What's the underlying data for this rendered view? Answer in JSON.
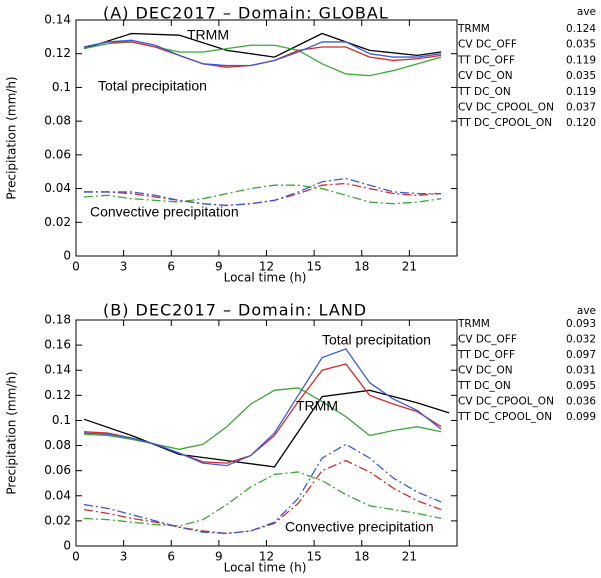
{
  "chart_data": [
    {
      "type": "line",
      "title": "(A)  DEC2017 – Domain: GLOBAL",
      "xlabel": "Local time (h)",
      "ylabel": "Precipitation (mm/h)",
      "legend_header": "ave",
      "annotations": [
        "TRMM",
        "Total precipitation",
        "Convective precipitation"
      ],
      "xlim": [
        0,
        24
      ],
      "xticks": [
        0,
        3,
        6,
        9,
        12,
        15,
        18,
        21
      ],
      "ylim": [
        0,
        0.14
      ],
      "yticks": [
        0,
        0.02,
        0.04,
        0.06,
        0.08,
        0.1,
        0.12,
        0.14
      ],
      "x": [
        0.5,
        2,
        3.5,
        5,
        6.5,
        8,
        9.5,
        11,
        12.5,
        14,
        15.5,
        17,
        18.5,
        20,
        21.5,
        23
      ],
      "series": [
        {
          "name": "TRMM",
          "color": "#000000",
          "linestyle": "solid",
          "average": 0.124,
          "x": [
            0.5,
            3.5,
            6.5,
            9.5,
            12.5,
            15.5,
            18.5,
            21.5,
            23
          ],
          "values": [
            0.123,
            0.132,
            0.131,
            0.122,
            0.118,
            0.132,
            0.122,
            0.119,
            0.121
          ]
        },
        {
          "name": "CV DC_OFF",
          "color": "#3aaa35",
          "linestyle": "dashdot",
          "average": 0.035,
          "values": [
            0.035,
            0.036,
            0.034,
            0.033,
            0.032,
            0.034,
            0.037,
            0.04,
            0.042,
            0.042,
            0.04,
            0.036,
            0.032,
            0.031,
            0.032,
            0.034
          ]
        },
        {
          "name": "TT DC_OFF",
          "color": "#3aaa35",
          "linestyle": "solid",
          "average": 0.119,
          "values": [
            0.123,
            0.126,
            0.127,
            0.124,
            0.121,
            0.121,
            0.123,
            0.125,
            0.125,
            0.122,
            0.114,
            0.108,
            0.107,
            0.11,
            0.114,
            0.118
          ]
        },
        {
          "name": "CV DC_ON",
          "color": "#d42a2a",
          "linestyle": "dashdot",
          "average": 0.035,
          "values": [
            0.038,
            0.038,
            0.037,
            0.035,
            0.033,
            0.031,
            0.03,
            0.031,
            0.033,
            0.037,
            0.042,
            0.043,
            0.04,
            0.037,
            0.036,
            0.037
          ]
        },
        {
          "name": "TT DC_ON",
          "color": "#d42a2a",
          "linestyle": "solid",
          "average": 0.119,
          "values": [
            0.124,
            0.127,
            0.127,
            0.124,
            0.119,
            0.114,
            0.112,
            0.113,
            0.116,
            0.122,
            0.124,
            0.124,
            0.118,
            0.116,
            0.117,
            0.119
          ]
        },
        {
          "name": "CV DC_CPOOL_ON",
          "color": "#3b5bdb",
          "linestyle": "dashdot",
          "average": 0.037,
          "values": [
            0.038,
            0.038,
            0.038,
            0.036,
            0.033,
            0.031,
            0.03,
            0.031,
            0.033,
            0.038,
            0.044,
            0.046,
            0.042,
            0.038,
            0.037,
            0.037
          ]
        },
        {
          "name": "TT DC_CPOOL_ON",
          "color": "#3b5bdb",
          "linestyle": "solid",
          "average": {
            "value": 0.12,
            "label": "0.120"
          },
          "values": [
            0.124,
            0.127,
            0.128,
            0.125,
            0.119,
            0.114,
            0.113,
            0.113,
            0.116,
            0.121,
            0.127,
            0.127,
            0.12,
            0.118,
            0.118,
            0.12
          ]
        }
      ]
    },
    {
      "type": "line",
      "title": "(B)  DEC2017 – Domain: LAND",
      "xlabel": "Local time (h)",
      "ylabel": "Precipitation (mm/h)",
      "legend_header": "ave",
      "annotations": [
        "Total precipitation",
        "TRMM",
        "Convective precipitation"
      ],
      "xlim": [
        0,
        24
      ],
      "xticks": [
        0,
        3,
        6,
        9,
        12,
        15,
        18,
        21
      ],
      "ylim": [
        0,
        0.18
      ],
      "yticks": [
        0,
        0.02,
        0.04,
        0.06,
        0.08,
        0.1,
        0.12,
        0.14,
        0.16,
        0.18
      ],
      "x": [
        0.5,
        2,
        3.5,
        5,
        6.5,
        8,
        9.5,
        11,
        12.5,
        14,
        15.5,
        17,
        18.5,
        20,
        21.5,
        23
      ],
      "series": [
        {
          "name": "TRMM",
          "color": "#000000",
          "linestyle": "solid",
          "average": 0.093,
          "x": [
            0.5,
            3.5,
            6.5,
            9.5,
            12.5,
            15.5,
            18.5,
            21.5,
            23.5
          ],
          "values": [
            0.101,
            0.088,
            0.073,
            0.068,
            0.063,
            0.119,
            0.124,
            0.114,
            0.106
          ]
        },
        {
          "name": "CV DC_OFF",
          "color": "#3aaa35",
          "linestyle": "dashdot",
          "average": 0.032,
          "values": [
            0.022,
            0.021,
            0.019,
            0.017,
            0.016,
            0.021,
            0.033,
            0.047,
            0.057,
            0.059,
            0.052,
            0.041,
            0.032,
            0.029,
            0.026,
            0.022
          ]
        },
        {
          "name": "TT DC_OFF",
          "color": "#3aaa35",
          "linestyle": "solid",
          "average": 0.097,
          "values": [
            0.089,
            0.088,
            0.085,
            0.081,
            0.077,
            0.081,
            0.095,
            0.113,
            0.124,
            0.126,
            0.115,
            0.103,
            0.088,
            0.092,
            0.095,
            0.091
          ]
        },
        {
          "name": "CV DC_ON",
          "color": "#d42a2a",
          "linestyle": "dashdot",
          "average": 0.031,
          "values": [
            0.029,
            0.026,
            0.022,
            0.019,
            0.015,
            0.012,
            0.01,
            0.012,
            0.018,
            0.034,
            0.06,
            0.068,
            0.059,
            0.046,
            0.036,
            0.029
          ]
        },
        {
          "name": "TT DC_ON",
          "color": "#d42a2a",
          "linestyle": "solid",
          "average": 0.095,
          "values": [
            0.091,
            0.09,
            0.086,
            0.081,
            0.074,
            0.067,
            0.066,
            0.072,
            0.088,
            0.115,
            0.14,
            0.145,
            0.12,
            0.113,
            0.107,
            0.095
          ]
        },
        {
          "name": "CV DC_CPOOL_ON",
          "color": "#3b5bdb",
          "linestyle": "dashdot",
          "average": 0.036,
          "values": [
            0.033,
            0.03,
            0.025,
            0.02,
            0.015,
            0.011,
            0.01,
            0.012,
            0.019,
            0.038,
            0.07,
            0.081,
            0.07,
            0.054,
            0.043,
            0.035
          ]
        },
        {
          "name": "TT DC_CPOOL_ON",
          "color": "#3b5bdb",
          "linestyle": "solid",
          "average": 0.099,
          "values": [
            0.09,
            0.089,
            0.086,
            0.081,
            0.074,
            0.066,
            0.064,
            0.072,
            0.09,
            0.12,
            0.15,
            0.157,
            0.13,
            0.117,
            0.108,
            0.093
          ]
        }
      ]
    }
  ]
}
